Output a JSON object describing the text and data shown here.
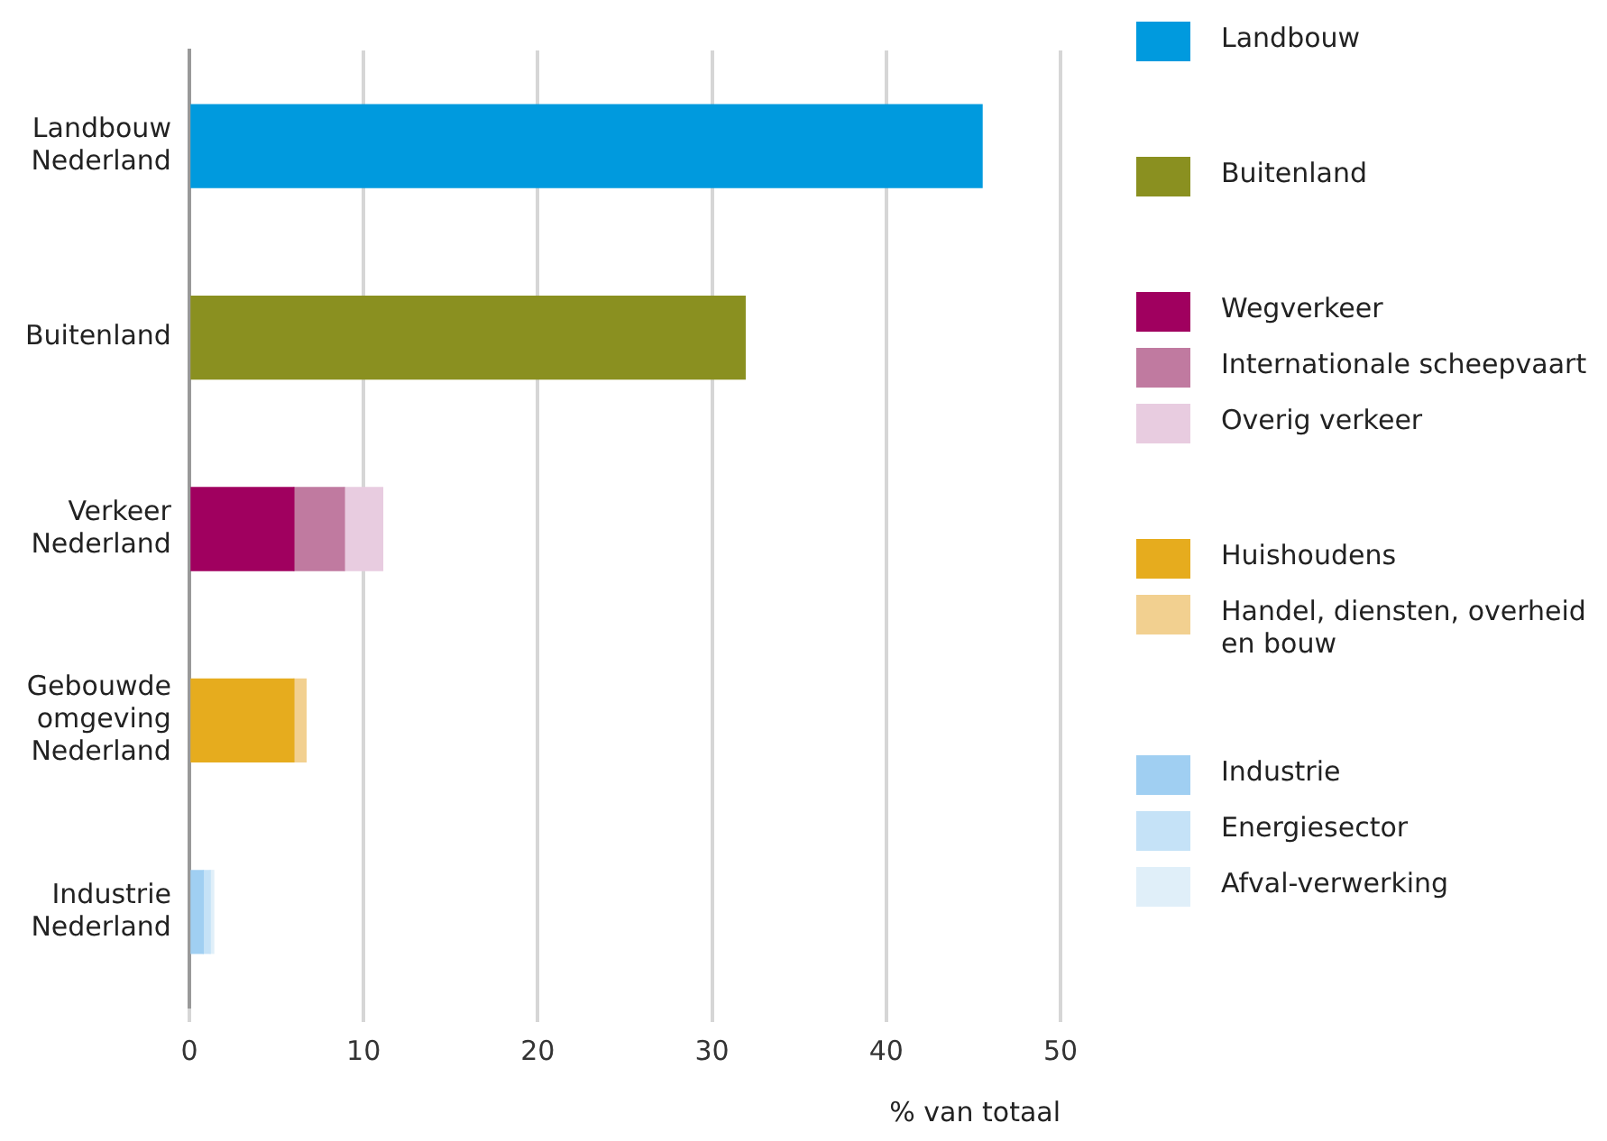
{
  "chart_data": {
    "type": "bar",
    "orientation": "horizontal",
    "stacked": true,
    "xlabel": "% van totaal",
    "categories": [
      "Landbouw Nederland",
      "Buitenland",
      "Verkeer Nederland",
      "Gebouwde omgeving Nederland",
      "Industrie Nederland"
    ],
    "series": [
      {
        "name": "Landbouw",
        "color": "#009ade",
        "values": [
          45.5,
          null,
          null,
          null,
          null
        ]
      },
      {
        "name": "Buitenland",
        "color": "#8a9020",
        "values": [
          null,
          31.9,
          null,
          null,
          null
        ]
      },
      {
        "name": "Wegverkeer",
        "color": "#a0005f",
        "values": [
          null,
          null,
          6.0,
          null,
          null
        ]
      },
      {
        "name": "Internationale scheepvaart",
        "color": "#c07aa0",
        "values": [
          null,
          null,
          2.9,
          null,
          null
        ]
      },
      {
        "name": "Overig verkeer",
        "color": "#e8cce0",
        "values": [
          null,
          null,
          2.2,
          null,
          null
        ]
      },
      {
        "name": "Huishoudens",
        "color": "#e6ac1e",
        "values": [
          null,
          null,
          null,
          6.0,
          null
        ]
      },
      {
        "name": "Handel, diensten, overheid en bouw",
        "color": "#f2d090",
        "values": [
          null,
          null,
          null,
          0.7,
          null
        ]
      },
      {
        "name": "Industrie",
        "color": "#a0cff2",
        "values": [
          null,
          null,
          null,
          null,
          0.8
        ]
      },
      {
        "name": "Energiesector",
        "color": "#c5e2f7",
        "values": [
          null,
          null,
          null,
          null,
          0.4
        ]
      },
      {
        "name": "Afval-verwerking",
        "color": "#e0eff9",
        "values": [
          null,
          null,
          null,
          null,
          0.2
        ]
      }
    ],
    "xlim": [
      0,
      50
    ],
    "xticks": [
      0,
      10,
      20,
      30,
      40,
      50
    ],
    "grid": "x",
    "legend": "right"
  }
}
